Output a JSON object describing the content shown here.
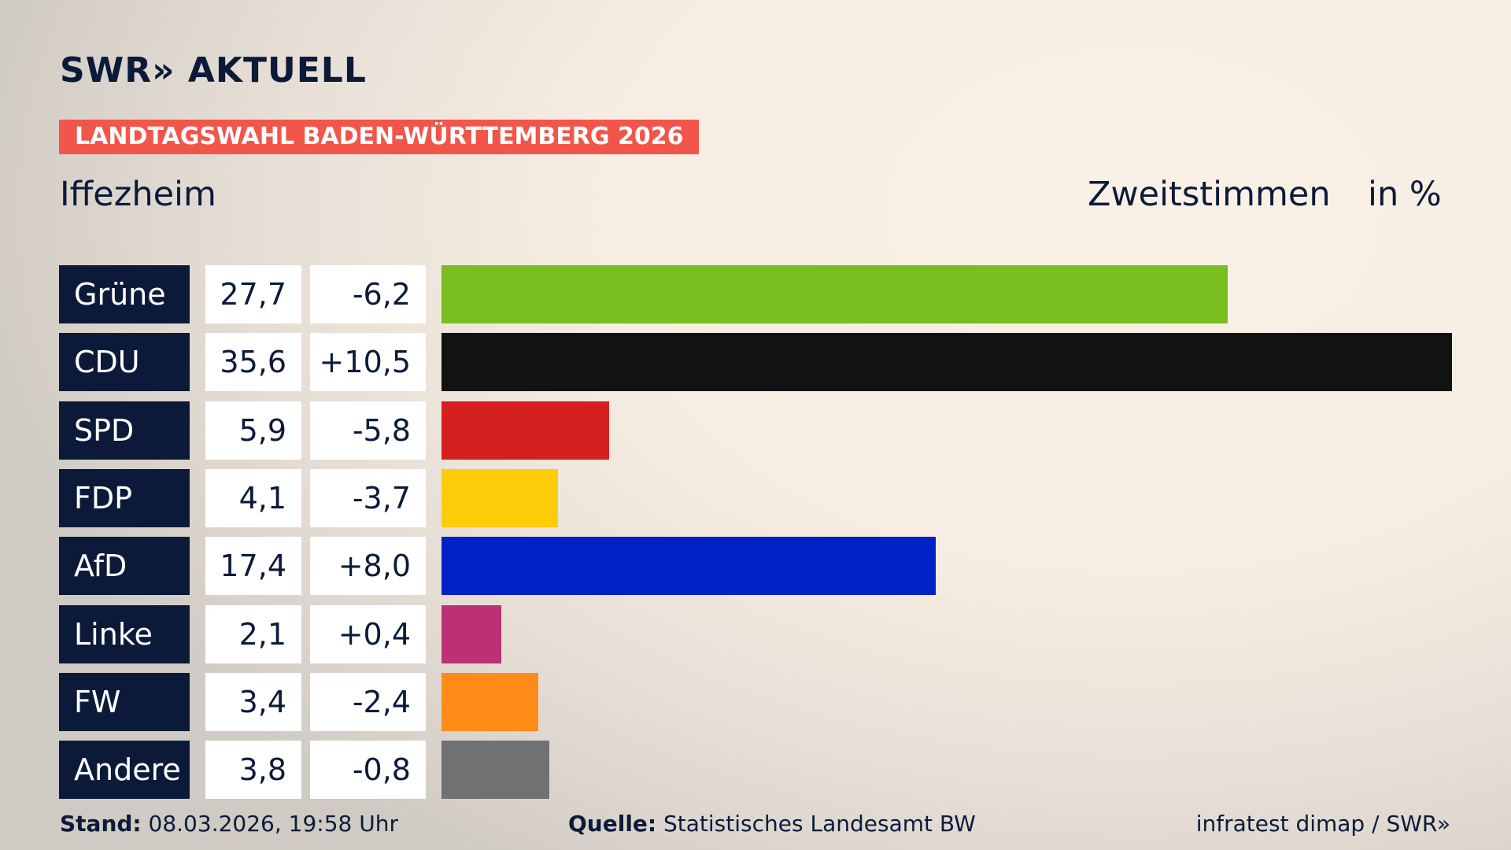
{
  "header": {
    "logo": "SWR» AKTUELL",
    "banner": "LANDTAGSWAHL BADEN-WÜRTTEMBERG 2026"
  },
  "chart_data": {
    "type": "bar",
    "title": "Iffezheim",
    "subtitle": "Zweitstimmen",
    "unit": "in %",
    "categories": [
      "Grüne",
      "CDU",
      "SPD",
      "FDP",
      "AfD",
      "Linke",
      "FW",
      "Andere"
    ],
    "values": [
      27.7,
      35.6,
      5.9,
      4.1,
      17.4,
      2.1,
      3.4,
      3.8
    ],
    "value_labels": [
      "27,7",
      "35,6",
      "5,9",
      "4,1",
      "17,4",
      "2,1",
      "3,4",
      "3,8"
    ],
    "changes": [
      -6.2,
      10.5,
      -5.8,
      -3.7,
      8.0,
      0.4,
      -2.4,
      -0.8
    ],
    "change_labels": [
      "-6,2",
      "+10,5",
      "-5,8",
      "-3,7",
      "+8,0",
      "+0,4",
      "-2,4",
      "-0,8"
    ],
    "colors": [
      "#78be20",
      "#121212",
      "#d52020",
      "#ffcc09",
      "#0021c6",
      "#be3075",
      "#ff8c19",
      "#707173"
    ]
  },
  "footer": {
    "stand_label": "Stand:",
    "stand": "08.03.2026, 19:58 Uhr",
    "source_label": "Quelle:",
    "source": "Statistisches Landesamt BW",
    "credit": "infratest dimap / SWR»"
  }
}
